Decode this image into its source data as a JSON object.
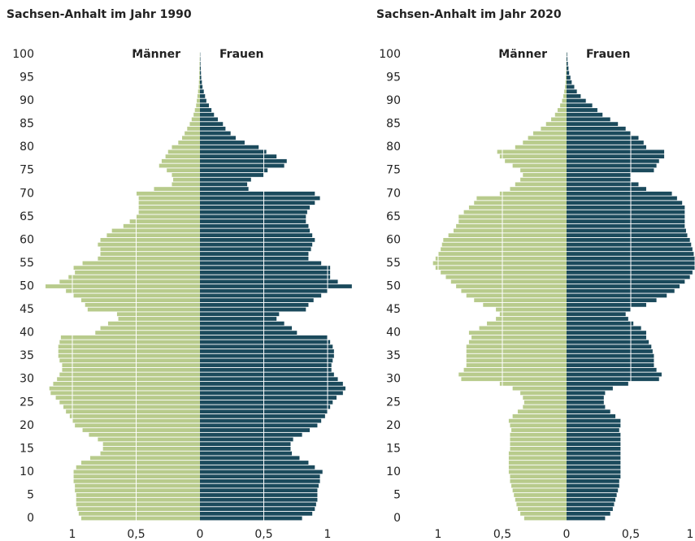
{
  "chart_data": [
    {
      "type": "pyramid",
      "title": "Sachsen-Anhalt im Jahr 1990",
      "y": [
        0,
        1,
        2,
        3,
        4,
        5,
        6,
        7,
        8,
        9,
        10,
        11,
        12,
        13,
        14,
        15,
        16,
        17,
        18,
        19,
        20,
        21,
        22,
        23,
        24,
        25,
        26,
        27,
        28,
        29,
        30,
        31,
        32,
        33,
        34,
        35,
        36,
        37,
        38,
        39,
        40,
        41,
        42,
        43,
        44,
        45,
        46,
        47,
        48,
        49,
        50,
        51,
        52,
        53,
        54,
        55,
        56,
        57,
        58,
        59,
        60,
        61,
        62,
        63,
        64,
        65,
        66,
        67,
        68,
        69,
        70,
        71,
        72,
        73,
        74,
        75,
        76,
        77,
        78,
        79,
        80,
        81,
        82,
        83,
        84,
        85,
        86,
        87,
        88,
        89,
        90,
        91,
        92,
        93,
        94,
        95,
        96,
        97,
        98,
        99,
        100
      ],
      "series": [
        {
          "name": "Männer",
          "color": "#b8cb8c",
          "side": "left",
          "values": [
            0.93,
            0.95,
            0.96,
            0.97,
            0.97,
            0.97,
            0.98,
            0.98,
            0.99,
            0.99,
            0.99,
            0.97,
            0.93,
            0.86,
            0.78,
            0.76,
            0.76,
            0.8,
            0.87,
            0.92,
            0.98,
            1.0,
            1.02,
            1.05,
            1.07,
            1.1,
            1.13,
            1.17,
            1.18,
            1.15,
            1.12,
            1.1,
            1.08,
            1.08,
            1.1,
            1.11,
            1.11,
            1.11,
            1.1,
            1.09,
            0.82,
            0.78,
            0.72,
            0.64,
            0.65,
            0.88,
            0.9,
            0.93,
            0.99,
            1.05,
            1.21,
            1.1,
            1.03,
            0.98,
            0.99,
            0.92,
            0.8,
            0.78,
            0.78,
            0.8,
            0.78,
            0.73,
            0.69,
            0.6,
            0.55,
            0.5,
            0.48,
            0.48,
            0.48,
            0.48,
            0.5,
            0.36,
            0.22,
            0.21,
            0.22,
            0.26,
            0.32,
            0.3,
            0.27,
            0.25,
            0.22,
            0.17,
            0.14,
            0.12,
            0.1,
            0.08,
            0.065,
            0.05,
            0.04,
            0.03,
            0.025,
            0.02,
            0.015,
            0.01,
            0.008,
            0.006,
            0.005,
            0.004,
            0.003,
            0.002,
            0.001
          ]
        },
        {
          "name": "Frauen",
          "color": "#1b4a5c",
          "side": "right",
          "values": [
            0.8,
            0.88,
            0.9,
            0.91,
            0.92,
            0.92,
            0.92,
            0.93,
            0.94,
            0.94,
            0.96,
            0.9,
            0.85,
            0.78,
            0.72,
            0.71,
            0.71,
            0.73,
            0.8,
            0.86,
            0.92,
            0.95,
            0.98,
            1.0,
            1.02,
            1.04,
            1.07,
            1.12,
            1.14,
            1.12,
            1.08,
            1.05,
            1.03,
            1.03,
            1.04,
            1.05,
            1.05,
            1.04,
            1.02,
            1.0,
            0.76,
            0.72,
            0.66,
            0.6,
            0.62,
            0.83,
            0.85,
            0.89,
            0.95,
            1.0,
            1.19,
            1.08,
            1.02,
            1.02,
            1.02,
            0.95,
            0.85,
            0.85,
            0.87,
            0.88,
            0.9,
            0.88,
            0.86,
            0.85,
            0.83,
            0.83,
            0.84,
            0.86,
            0.9,
            0.94,
            0.9,
            0.38,
            0.37,
            0.4,
            0.5,
            0.53,
            0.66,
            0.68,
            0.6,
            0.52,
            0.46,
            0.35,
            0.28,
            0.24,
            0.2,
            0.18,
            0.14,
            0.11,
            0.09,
            0.07,
            0.05,
            0.04,
            0.03,
            0.02,
            0.015,
            0.01,
            0.008,
            0.006,
            0.004,
            0.003,
            0.002
          ]
        }
      ],
      "xlim": [
        -1.2,
        1.2
      ],
      "xticks": [
        {
          "value": -1,
          "label": "1"
        },
        {
          "value": -0.5,
          "label": "0,5"
        },
        0,
        {
          "value": 0.5,
          "label": "0,5"
        },
        1
      ],
      "ylim": [
        -0.5,
        100.5
      ],
      "yticks": [
        0,
        5,
        10,
        15,
        20,
        25,
        30,
        35,
        40,
        45,
        50,
        55,
        60,
        65,
        70,
        75,
        80,
        85,
        90,
        95,
        100
      ],
      "grid": true
    },
    {
      "type": "pyramid",
      "title": "Sachsen-Anhalt im Jahr 2020",
      "y": [
        0,
        1,
        2,
        3,
        4,
        5,
        6,
        7,
        8,
        9,
        10,
        11,
        12,
        13,
        14,
        15,
        16,
        17,
        18,
        19,
        20,
        21,
        22,
        23,
        24,
        25,
        26,
        27,
        28,
        29,
        30,
        31,
        32,
        33,
        34,
        35,
        36,
        37,
        38,
        39,
        40,
        41,
        42,
        43,
        44,
        45,
        46,
        47,
        48,
        49,
        50,
        51,
        52,
        53,
        54,
        55,
        56,
        57,
        58,
        59,
        60,
        61,
        62,
        63,
        64,
        65,
        66,
        67,
        68,
        69,
        70,
        71,
        72,
        73,
        74,
        75,
        76,
        77,
        78,
        79,
        80,
        81,
        82,
        83,
        84,
        85,
        86,
        87,
        88,
        89,
        90,
        91,
        92,
        93,
        94,
        95,
        96,
        97,
        98,
        99,
        100
      ],
      "series": [
        {
          "name": "Männer",
          "color": "#b8cb8c",
          "side": "left",
          "values": [
            0.33,
            0.36,
            0.38,
            0.39,
            0.4,
            0.41,
            0.42,
            0.43,
            0.44,
            0.44,
            0.45,
            0.45,
            0.45,
            0.45,
            0.45,
            0.44,
            0.44,
            0.44,
            0.44,
            0.43,
            0.44,
            0.45,
            0.42,
            0.38,
            0.34,
            0.33,
            0.34,
            0.36,
            0.42,
            0.52,
            0.82,
            0.84,
            0.8,
            0.78,
            0.78,
            0.78,
            0.78,
            0.78,
            0.76,
            0.74,
            0.76,
            0.68,
            0.62,
            0.55,
            0.52,
            0.55,
            0.65,
            0.72,
            0.78,
            0.82,
            0.86,
            0.9,
            0.94,
            0.98,
            1.02,
            1.04,
            1.02,
            1.0,
            0.98,
            0.97,
            0.96,
            0.92,
            0.88,
            0.86,
            0.84,
            0.84,
            0.8,
            0.76,
            0.72,
            0.7,
            0.52,
            0.44,
            0.4,
            0.36,
            0.34,
            0.36,
            0.42,
            0.48,
            0.52,
            0.54,
            0.4,
            0.34,
            0.3,
            0.26,
            0.2,
            0.16,
            0.12,
            0.09,
            0.07,
            0.05,
            0.035,
            0.025,
            0.018,
            0.012,
            0.008,
            0.006,
            0.004,
            0.003,
            0.002,
            0.001,
            0.001
          ]
        },
        {
          "name": "Frauen",
          "color": "#1b4a5c",
          "side": "right",
          "values": [
            0.3,
            0.34,
            0.36,
            0.37,
            0.38,
            0.39,
            0.4,
            0.41,
            0.41,
            0.42,
            0.42,
            0.42,
            0.42,
            0.42,
            0.42,
            0.42,
            0.42,
            0.42,
            0.42,
            0.41,
            0.42,
            0.42,
            0.38,
            0.34,
            0.3,
            0.29,
            0.29,
            0.3,
            0.36,
            0.48,
            0.72,
            0.74,
            0.7,
            0.68,
            0.68,
            0.68,
            0.67,
            0.66,
            0.64,
            0.62,
            0.62,
            0.58,
            0.52,
            0.48,
            0.46,
            0.5,
            0.62,
            0.7,
            0.78,
            0.84,
            0.88,
            0.92,
            0.96,
            0.98,
            1.0,
            1.0,
            1.0,
            0.99,
            0.98,
            0.97,
            0.96,
            0.94,
            0.93,
            0.92,
            0.92,
            0.92,
            0.92,
            0.92,
            0.9,
            0.86,
            0.82,
            0.62,
            0.56,
            0.5,
            0.5,
            0.68,
            0.7,
            0.72,
            0.76,
            0.76,
            0.62,
            0.6,
            0.56,
            0.5,
            0.46,
            0.4,
            0.34,
            0.28,
            0.24,
            0.2,
            0.15,
            0.11,
            0.08,
            0.06,
            0.04,
            0.03,
            0.02,
            0.015,
            0.01,
            0.006,
            0.004
          ]
        }
      ],
      "xlim": [
        -1,
        1
      ],
      "xticks": [
        {
          "value": -1,
          "label": "1"
        },
        {
          "value": -0.5,
          "label": "0,5"
        },
        0,
        {
          "value": 0.5,
          "label": "0,5"
        },
        1
      ],
      "ylim": [
        -0.5,
        100.5
      ],
      "yticks": [
        0,
        5,
        10,
        15,
        20,
        25,
        30,
        35,
        40,
        45,
        50,
        55,
        60,
        65,
        70,
        75,
        80,
        85,
        90,
        95,
        100
      ],
      "grid": true
    }
  ]
}
